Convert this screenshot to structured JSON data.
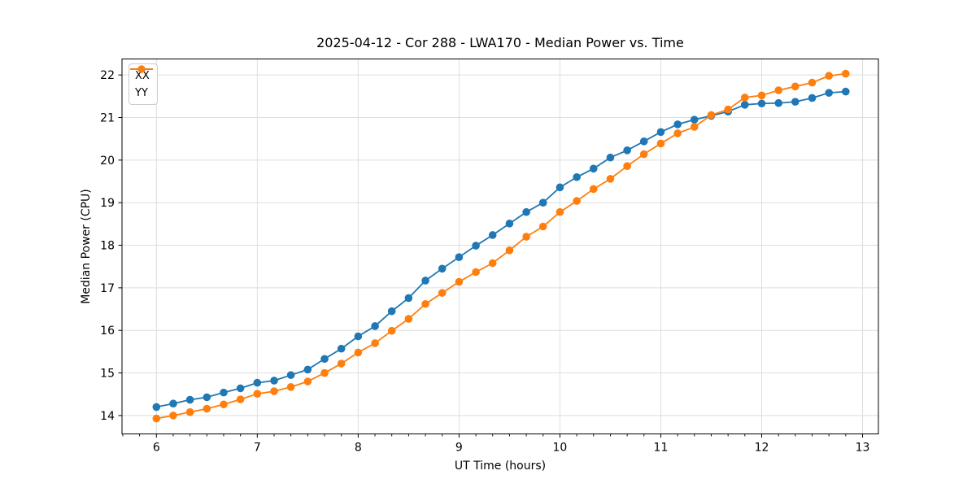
{
  "chart_data": {
    "type": "line",
    "title": "2025-04-12 - Cor 288 - LWA170 - Median Power vs. Time",
    "xlabel": "UT Time (hours)",
    "ylabel": "Median Power (CPU)",
    "xlim": [
      5.659,
      13.157
    ],
    "ylim": [
      13.568,
      22.376
    ],
    "x_major_ticks": [
      6,
      7,
      8,
      9,
      10,
      11,
      12,
      13
    ],
    "x_minor_divisions": 6,
    "y_major_ticks": [
      14,
      15,
      16,
      17,
      18,
      19,
      20,
      21,
      22
    ],
    "grid": true,
    "grid_color": "#dedede",
    "legend_position": "upper-left",
    "marker": "circle",
    "x": [
      6.0,
      6.167,
      6.333,
      6.5,
      6.667,
      6.833,
      7.0,
      7.167,
      7.333,
      7.5,
      7.667,
      7.833,
      8.0,
      8.167,
      8.333,
      8.5,
      8.667,
      8.833,
      9.0,
      9.167,
      9.333,
      9.5,
      9.667,
      9.833,
      10.0,
      10.167,
      10.333,
      10.5,
      10.667,
      10.833,
      11.0,
      11.167,
      11.333,
      11.5,
      11.667,
      11.833,
      12.0,
      12.167,
      12.333,
      12.5,
      12.667,
      12.833
    ],
    "series": [
      {
        "name": "XX",
        "color": "#1f77b4",
        "values": [
          14.2,
          14.28,
          14.37,
          14.43,
          14.54,
          14.64,
          14.77,
          14.82,
          14.95,
          15.08,
          15.33,
          15.57,
          15.86,
          16.1,
          16.45,
          16.76,
          17.17,
          17.45,
          17.72,
          17.99,
          18.24,
          18.51,
          18.78,
          19.0,
          19.36,
          19.6,
          19.8,
          20.06,
          20.23,
          20.44,
          20.66,
          20.84,
          20.95,
          21.04,
          21.14,
          21.3,
          21.33,
          21.34,
          21.37,
          21.46,
          21.58,
          21.61
        ]
      },
      {
        "name": "YY",
        "color": "#ff7f0e",
        "values": [
          13.93,
          14.0,
          14.08,
          14.16,
          14.26,
          14.38,
          14.51,
          14.57,
          14.67,
          14.8,
          15.0,
          15.22,
          15.48,
          15.7,
          15.99,
          16.27,
          16.62,
          16.88,
          17.14,
          17.37,
          17.58,
          17.88,
          18.2,
          18.44,
          18.78,
          19.04,
          19.32,
          19.56,
          19.86,
          20.14,
          20.39,
          20.63,
          20.78,
          21.06,
          21.19,
          21.47,
          21.52,
          21.64,
          21.73,
          21.82,
          21.98,
          22.03
        ]
      }
    ]
  }
}
